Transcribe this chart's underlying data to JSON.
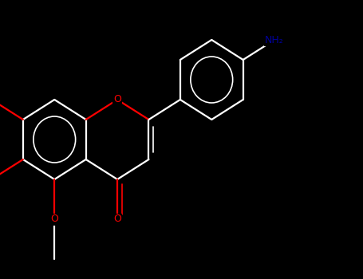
{
  "background_color": "#000000",
  "bond_color": "#ffffff",
  "O_color": "#ff0000",
  "N_color": "#000099",
  "figsize": [
    4.55,
    3.5
  ],
  "dpi": 100,
  "lw": 1.6,
  "lw_thin": 1.2,
  "font_size_O": 9,
  "font_size_NH2": 9,
  "xlim": [
    -0.5,
    9.5
  ],
  "ylim": [
    -3.5,
    3.5
  ]
}
